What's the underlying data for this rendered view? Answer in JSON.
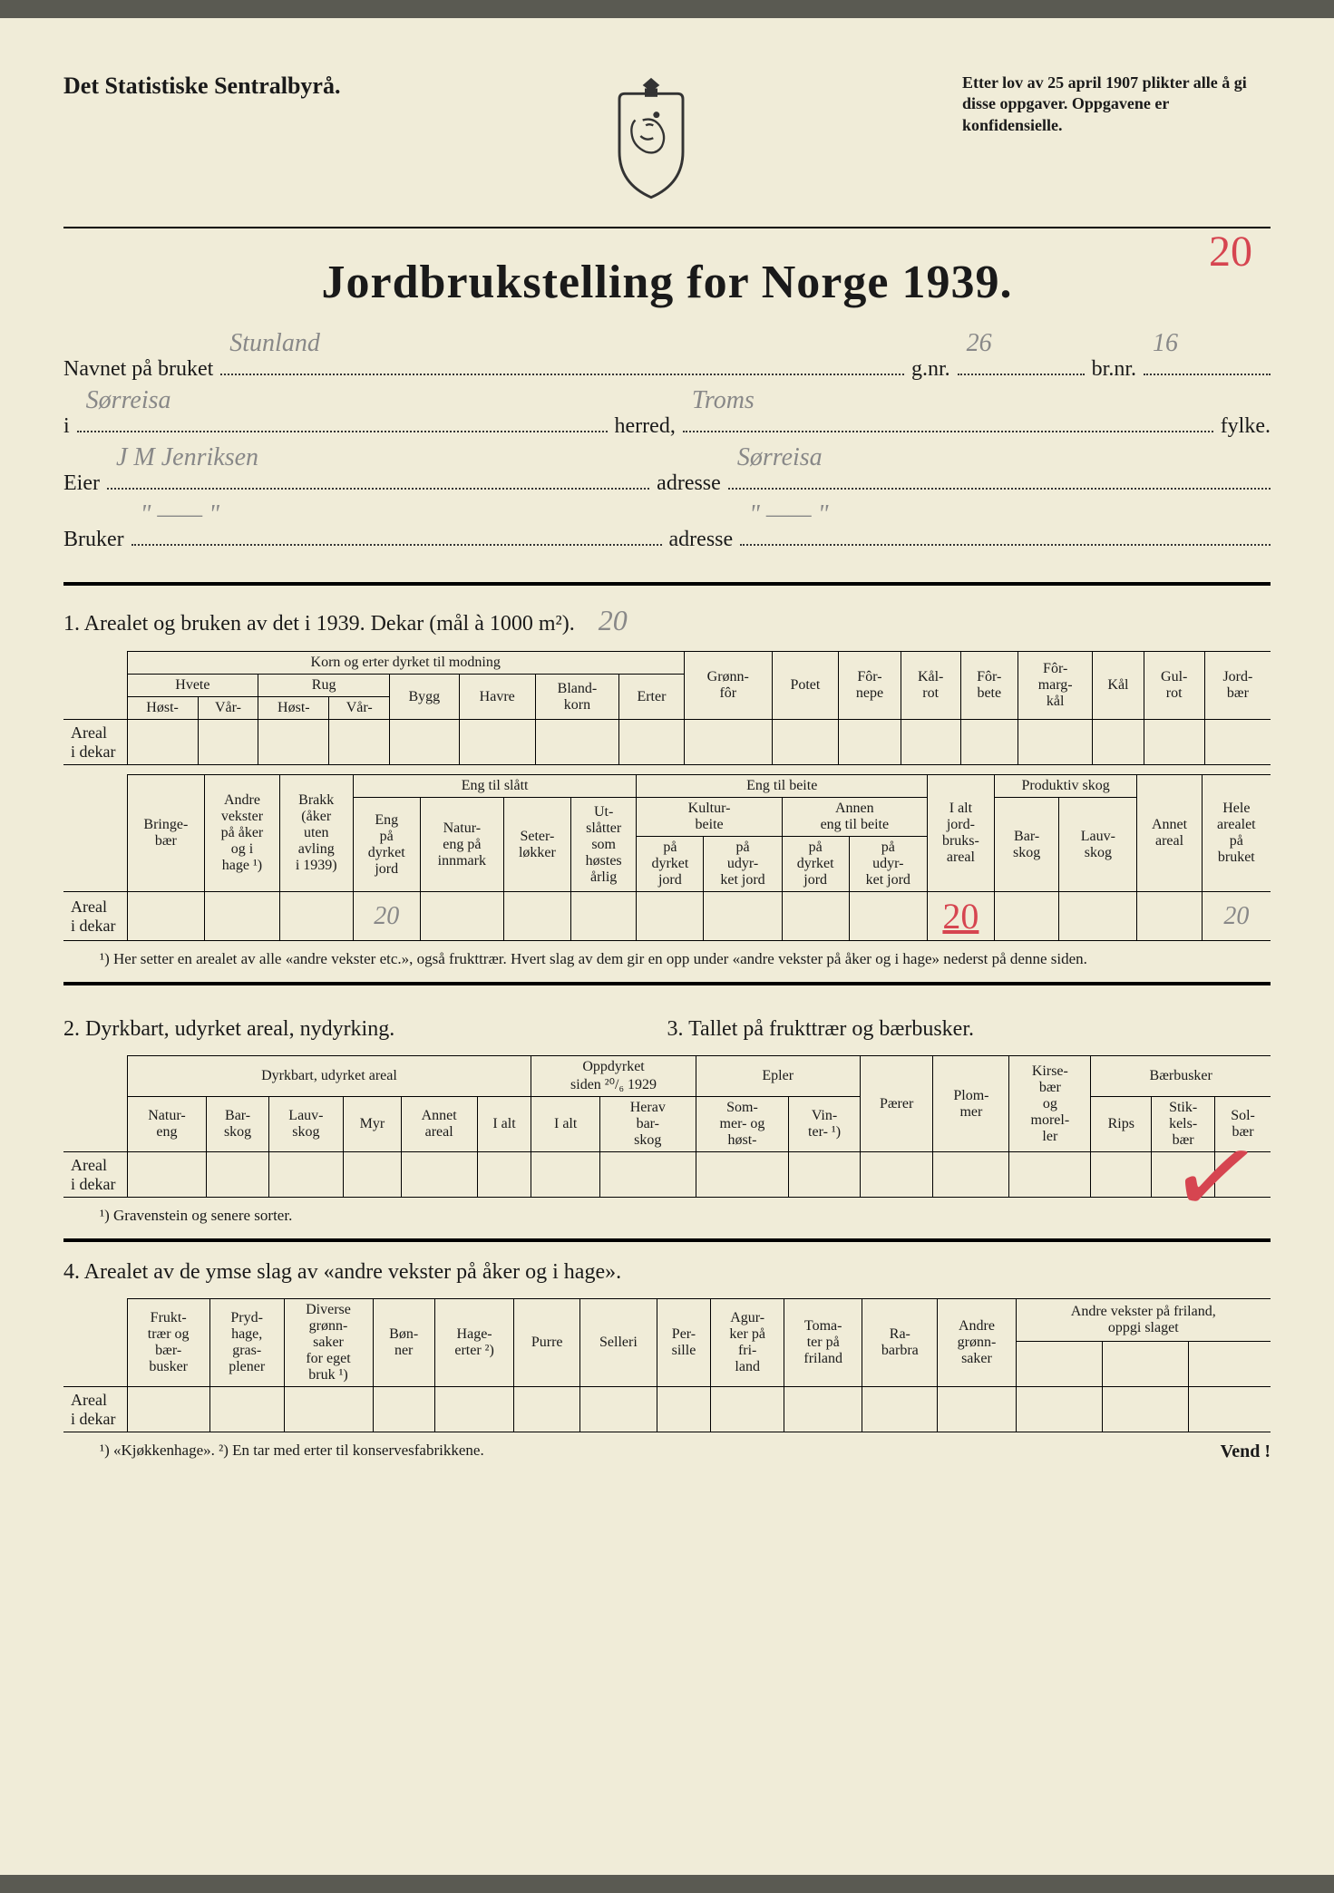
{
  "header": {
    "agency": "Det Statistiske Sentralbyrå.",
    "legal": "Etter lov av 25 april 1907 plikter alle å gi disse oppgaver. Oppgavene er konfidensielle."
  },
  "title": "Jordbrukstelling for Norge 1939.",
  "handwritten": {
    "top_right_red": "20",
    "bruket": "Stunland",
    "gnr": "26",
    "brnr": "16",
    "herred": "Sørreisa",
    "fylke": "Troms",
    "eier": "J M Jenriksen",
    "eier_adresse": "Sørreisa",
    "bruker": "\"    ——    \"",
    "bruker_adresse": "\"    ——    \"",
    "section1_head_val": "20",
    "t2_eng_dyrket": "20",
    "t2_ialt_red": "20",
    "t2_hele": "20"
  },
  "labels": {
    "navnet": "Navnet på bruket",
    "gnr": "g.nr.",
    "brnr": "br.nr.",
    "i": "i",
    "herred": "herred,",
    "fylke": "fylke.",
    "eier": "Eier",
    "adresse": "adresse",
    "bruker": "Bruker"
  },
  "section1": {
    "title": "1.  Arealet og bruken av det i 1939.    Dekar (mål à 1000 m²).",
    "t1": {
      "group": "Korn og erter dyrket til modning",
      "hvete": "Hvete",
      "rug": "Rug",
      "host": "Høst-",
      "var": "Vår-",
      "bygg": "Bygg",
      "havre": "Havre",
      "blandkorn": "Bland-\nkorn",
      "erter": "Erter",
      "gronnfor": "Grønn-\nfôr",
      "potet": "Potet",
      "fornepe": "Fôr-\nnepe",
      "kalrot": "Kål-\nrot",
      "forbete": "Fôr-\nbete",
      "formargkal": "Fôr-\nmarg-\nkål",
      "kal": "Kål",
      "gulrot": "Gul-\nrot",
      "jordbar": "Jord-\nbær",
      "rowlabel": "Areal\ni dekar"
    },
    "t2": {
      "bringebar": "Bringe-\nbær",
      "andre": "Andre\nvekster\npå åker\nog i\nhage ¹)",
      "brakk": "Brakk\n(åker\nuten\navling\ni 1939)",
      "engslatt": "Eng til slått",
      "eng_dyrket": "Eng\npå\ndyrket\njord",
      "natureng": "Natur-\neng på\ninnmark",
      "seter": "Seter-\nløkker",
      "utslatter": "Ut-\nslåtter\nsom\nhøstes\nårlig",
      "engbeite": "Eng til beite",
      "kulturbeite": "Kultur-\nbeite",
      "annenbeite": "Annen\neng til beite",
      "pa_dyrket": "på\ndyrket\njord",
      "pa_udyrket": "på\nudyr-\nket jord",
      "ialt": "I alt\njord-\nbruks-\nareal",
      "prodskog": "Produktiv skog",
      "barskog": "Bar-\nskog",
      "lauvskog": "Lauv-\nskog",
      "annet": "Annet\nareal",
      "hele": "Hele\narealet\npå\nbruket",
      "rowlabel": "Areal\ni dekar"
    },
    "footnote": "¹) Her setter en arealet av alle «andre vekster etc.», også frukttrær.  Hvert slag av dem gir en opp under «andre vekster på åker og i hage» nederst på denne siden."
  },
  "section2": {
    "title_left": "2.  Dyrkbart, udyrket areal, nydyrking.",
    "title_right": "3.  Tallet på frukttrær og bærbusker.",
    "dyrkbart": "Dyrkbart, udyrket areal",
    "natureng": "Natur-\neng",
    "barskog": "Bar-\nskog",
    "lauvskog": "Lauv-\nskog",
    "myr": "Myr",
    "annet": "Annet\nareal",
    "ialt": "I alt",
    "oppd": "Oppdyrket\nsiden ²⁰/₆ 1929",
    "ialt2": "I alt",
    "herav": "Herav\nbar-\nskog",
    "epler": "Epler",
    "sommer": "Som-\nmer- og\nhøst-",
    "vinter": "Vin-\nter- ¹)",
    "parer": "Pærer",
    "plommer": "Plom-\nmer",
    "kirsebar": "Kirse-\nbær\nog\nmorel-\nler",
    "barbusker": "Bærbusker",
    "rips": "Rips",
    "stikkels": "Stik-\nkels-\nbær",
    "solbar": "Sol-\nbær",
    "rowlabel": "Areal\ni dekar",
    "footnote": "¹) Gravenstein og senere sorter."
  },
  "section4": {
    "title": "4.  Arealet av de ymse slag av «andre vekster på åker og i hage».",
    "frukt": "Frukt-\ntrær og\nbær-\nbusker",
    "pryd": "Pryd-\nhage,\ngras-\nplener",
    "diverse": "Diverse\ngrønn-\nsaker\nfor eget\nbruk ¹)",
    "bonner": "Bøn-\nner",
    "hageerter": "Hage-\nerter ²)",
    "purre": "Purre",
    "selleri": "Selleri",
    "persille": "Per-\nsille",
    "agurker": "Agur-\nker på\nfri-\nland",
    "tomater": "Toma-\nter på\nfriland",
    "rabarbra": "Ra-\nbarbra",
    "andregr": "Andre\ngrønn-\nsaker",
    "andrefriland": "Andre vekster på friland,\noppgi slaget",
    "rowlabel": "Areal\ni dekar",
    "footnote": "¹) «Kjøkkenhage».    ²) En tar med erter til konservesfabrikkene.",
    "vend": "Vend !"
  }
}
